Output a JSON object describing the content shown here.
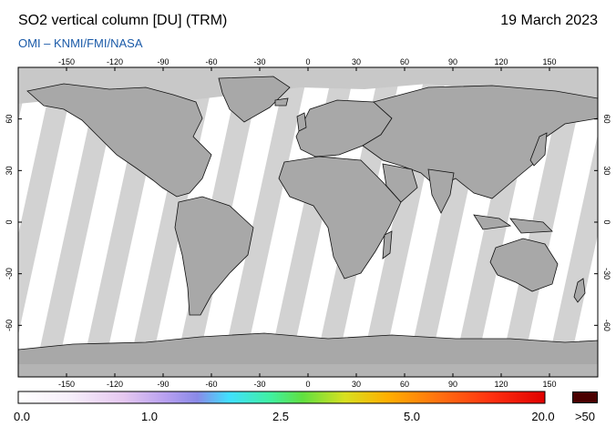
{
  "header": {
    "title": "SO2 vertical column [DU] (TRM)",
    "date": "19 March 2023",
    "source": "OMI   –   KNMI/FMI/NASA"
  },
  "map": {
    "lon_ticks": [
      "-150",
      "-120",
      "-90",
      "-60",
      "-30",
      "0",
      "30",
      "60",
      "90",
      "120",
      "150"
    ],
    "lat_ticks": [
      "60",
      "30",
      "0",
      "-30",
      "-60"
    ],
    "colors": {
      "ocean": "#ffffff",
      "land": "#a8a8a8",
      "no_data": "#d2d2d2",
      "polar": "#c8c8c8"
    }
  },
  "colorbar": {
    "labels": [
      "0.0",
      "1.0",
      "2.5",
      "5.0",
      "20.0"
    ],
    "overflow_label": ">50",
    "overflow_color": "#4a0000"
  }
}
